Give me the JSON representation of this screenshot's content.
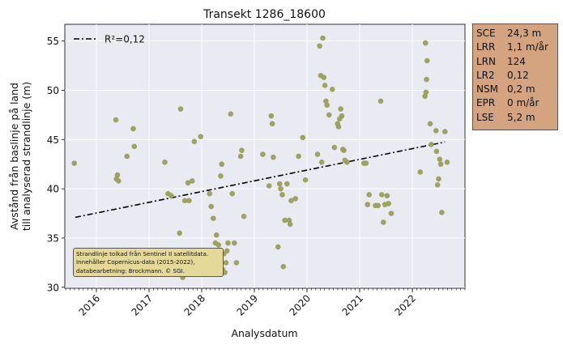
{
  "chart_data": {
    "type": "scatter",
    "title": "Transekt 1286_18600",
    "xlabel": "Analysdatum",
    "ylabel_lines": [
      "Avstånd från baslinje på land",
      "till analyserad strandlinje (m)"
    ],
    "x_ticks": [
      "2016",
      "2017",
      "2018",
      "2019",
      "2020",
      "2021",
      "2022"
    ],
    "x_range": [
      2015.4,
      2023.0
    ],
    "y_ticks": [
      30,
      35,
      40,
      45,
      50,
      55
    ],
    "y_range": [
      29.9,
      56.7
    ],
    "grid": true,
    "legend": {
      "position": "top-left",
      "label": "R²=0,12"
    },
    "trend_line": {
      "x": [
        2015.6,
        2022.62
      ],
      "y": [
        37.1,
        44.75
      ]
    },
    "points": [
      {
        "x": 2015.58,
        "y": 42.6
      },
      {
        "x": 2016.37,
        "y": 47.0
      },
      {
        "x": 2016.38,
        "y": 41.0
      },
      {
        "x": 2016.4,
        "y": 41.4
      },
      {
        "x": 2016.42,
        "y": 40.8
      },
      {
        "x": 2016.58,
        "y": 43.3
      },
      {
        "x": 2016.7,
        "y": 46.1
      },
      {
        "x": 2016.72,
        "y": 44.3
      },
      {
        "x": 2017.3,
        "y": 42.7
      },
      {
        "x": 2017.36,
        "y": 39.5
      },
      {
        "x": 2017.42,
        "y": 39.3
      },
      {
        "x": 2017.58,
        "y": 35.5
      },
      {
        "x": 2017.6,
        "y": 48.1
      },
      {
        "x": 2017.64,
        "y": 31.0
      },
      {
        "x": 2017.68,
        "y": 38.8
      },
      {
        "x": 2017.74,
        "y": 40.6
      },
      {
        "x": 2017.76,
        "y": 38.8
      },
      {
        "x": 2017.82,
        "y": 40.8
      },
      {
        "x": 2017.86,
        "y": 44.8
      },
      {
        "x": 2017.98,
        "y": 45.3
      },
      {
        "x": 2018.15,
        "y": 39.5
      },
      {
        "x": 2018.18,
        "y": 38.2
      },
      {
        "x": 2018.22,
        "y": 37.0
      },
      {
        "x": 2018.26,
        "y": 34.5
      },
      {
        "x": 2018.28,
        "y": 35.3
      },
      {
        "x": 2018.3,
        "y": 33.1
      },
      {
        "x": 2018.32,
        "y": 34.3
      },
      {
        "x": 2018.34,
        "y": 32.2
      },
      {
        "x": 2018.36,
        "y": 41.3
      },
      {
        "x": 2018.38,
        "y": 42.5
      },
      {
        "x": 2018.4,
        "y": 31.8
      },
      {
        "x": 2018.42,
        "y": 33.4
      },
      {
        "x": 2018.44,
        "y": 31.5
      },
      {
        "x": 2018.46,
        "y": 32.5
      },
      {
        "x": 2018.48,
        "y": 33.7
      },
      {
        "x": 2018.5,
        "y": 34.5
      },
      {
        "x": 2018.55,
        "y": 47.6
      },
      {
        "x": 2018.58,
        "y": 39.5
      },
      {
        "x": 2018.62,
        "y": 34.5
      },
      {
        "x": 2018.66,
        "y": 32.5
      },
      {
        "x": 2018.74,
        "y": 43.3
      },
      {
        "x": 2018.76,
        "y": 43.9
      },
      {
        "x": 2018.8,
        "y": 37.2
      },
      {
        "x": 2019.16,
        "y": 43.5
      },
      {
        "x": 2019.28,
        "y": 40.3
      },
      {
        "x": 2019.32,
        "y": 47.4
      },
      {
        "x": 2019.34,
        "y": 46.6
      },
      {
        "x": 2019.36,
        "y": 43.2
      },
      {
        "x": 2019.45,
        "y": 34.1
      },
      {
        "x": 2019.48,
        "y": 40.5
      },
      {
        "x": 2019.5,
        "y": 40.0
      },
      {
        "x": 2019.53,
        "y": 39.4
      },
      {
        "x": 2019.55,
        "y": 32.1
      },
      {
        "x": 2019.58,
        "y": 36.8
      },
      {
        "x": 2019.62,
        "y": 40.5
      },
      {
        "x": 2019.66,
        "y": 36.8
      },
      {
        "x": 2019.68,
        "y": 36.4
      },
      {
        "x": 2019.7,
        "y": 38.8
      },
      {
        "x": 2019.78,
        "y": 39.0
      },
      {
        "x": 2019.84,
        "y": 43.3
      },
      {
        "x": 2019.92,
        "y": 45.2
      },
      {
        "x": 2019.97,
        "y": 40.9
      },
      {
        "x": 2020.2,
        "y": 43.5
      },
      {
        "x": 2020.24,
        "y": 54.5
      },
      {
        "x": 2020.26,
        "y": 51.5
      },
      {
        "x": 2020.28,
        "y": 42.7
      },
      {
        "x": 2020.3,
        "y": 55.3
      },
      {
        "x": 2020.32,
        "y": 51.3
      },
      {
        "x": 2020.34,
        "y": 50.5
      },
      {
        "x": 2020.36,
        "y": 48.9
      },
      {
        "x": 2020.38,
        "y": 48.5
      },
      {
        "x": 2020.42,
        "y": 47.5
      },
      {
        "x": 2020.48,
        "y": 50.1
      },
      {
        "x": 2020.52,
        "y": 44.2
      },
      {
        "x": 2020.58,
        "y": 46.6
      },
      {
        "x": 2020.6,
        "y": 46.3
      },
      {
        "x": 2020.62,
        "y": 47.1
      },
      {
        "x": 2020.64,
        "y": 48.1
      },
      {
        "x": 2020.66,
        "y": 47.4
      },
      {
        "x": 2020.68,
        "y": 44.0
      },
      {
        "x": 2020.7,
        "y": 43.9
      },
      {
        "x": 2020.72,
        "y": 42.9
      },
      {
        "x": 2020.76,
        "y": 42.7
      },
      {
        "x": 2021.08,
        "y": 42.6
      },
      {
        "x": 2021.12,
        "y": 42.6
      },
      {
        "x": 2021.15,
        "y": 38.4
      },
      {
        "x": 2021.18,
        "y": 39.4
      },
      {
        "x": 2021.3,
        "y": 38.3
      },
      {
        "x": 2021.35,
        "y": 38.3
      },
      {
        "x": 2021.4,
        "y": 48.9
      },
      {
        "x": 2021.42,
        "y": 39.4
      },
      {
        "x": 2021.45,
        "y": 36.6
      },
      {
        "x": 2021.48,
        "y": 38.4
      },
      {
        "x": 2021.52,
        "y": 39.3
      },
      {
        "x": 2021.55,
        "y": 38.5
      },
      {
        "x": 2021.6,
        "y": 37.5
      },
      {
        "x": 2022.15,
        "y": 41.7
      },
      {
        "x": 2022.24,
        "y": 49.4
      },
      {
        "x": 2022.25,
        "y": 54.8
      },
      {
        "x": 2022.26,
        "y": 49.8
      },
      {
        "x": 2022.27,
        "y": 51.1
      },
      {
        "x": 2022.28,
        "y": 53.0
      },
      {
        "x": 2022.34,
        "y": 46.6
      },
      {
        "x": 2022.36,
        "y": 44.5
      },
      {
        "x": 2022.45,
        "y": 45.9
      },
      {
        "x": 2022.46,
        "y": 43.8
      },
      {
        "x": 2022.48,
        "y": 40.4
      },
      {
        "x": 2022.5,
        "y": 41.0
      },
      {
        "x": 2022.52,
        "y": 43.0
      },
      {
        "x": 2022.54,
        "y": 42.5
      },
      {
        "x": 2022.56,
        "y": 37.6
      },
      {
        "x": 2022.62,
        "y": 45.8
      },
      {
        "x": 2022.66,
        "y": 42.7
      }
    ],
    "point_color": "#9a9f58",
    "stats": [
      {
        "key": "SCE",
        "value": "24,3 m"
      },
      {
        "key": "LRR",
        "value": "1,1 m/år"
      },
      {
        "key": "LRN",
        "value": "124"
      },
      {
        "key": "LR2",
        "value": "0,12"
      },
      {
        "key": "NSM",
        "value": "0,2 m"
      },
      {
        "key": "EPR",
        "value": "0 m/år"
      },
      {
        "key": "LSE",
        "value": "5,2 m"
      }
    ],
    "note_lines": [
      "Strandlinje tolkad från Sentinel II satellitdata.",
      "Innehåller Copernicus-data (2015-2022),",
      "databearbetning: Brockmann. © SGI."
    ]
  }
}
